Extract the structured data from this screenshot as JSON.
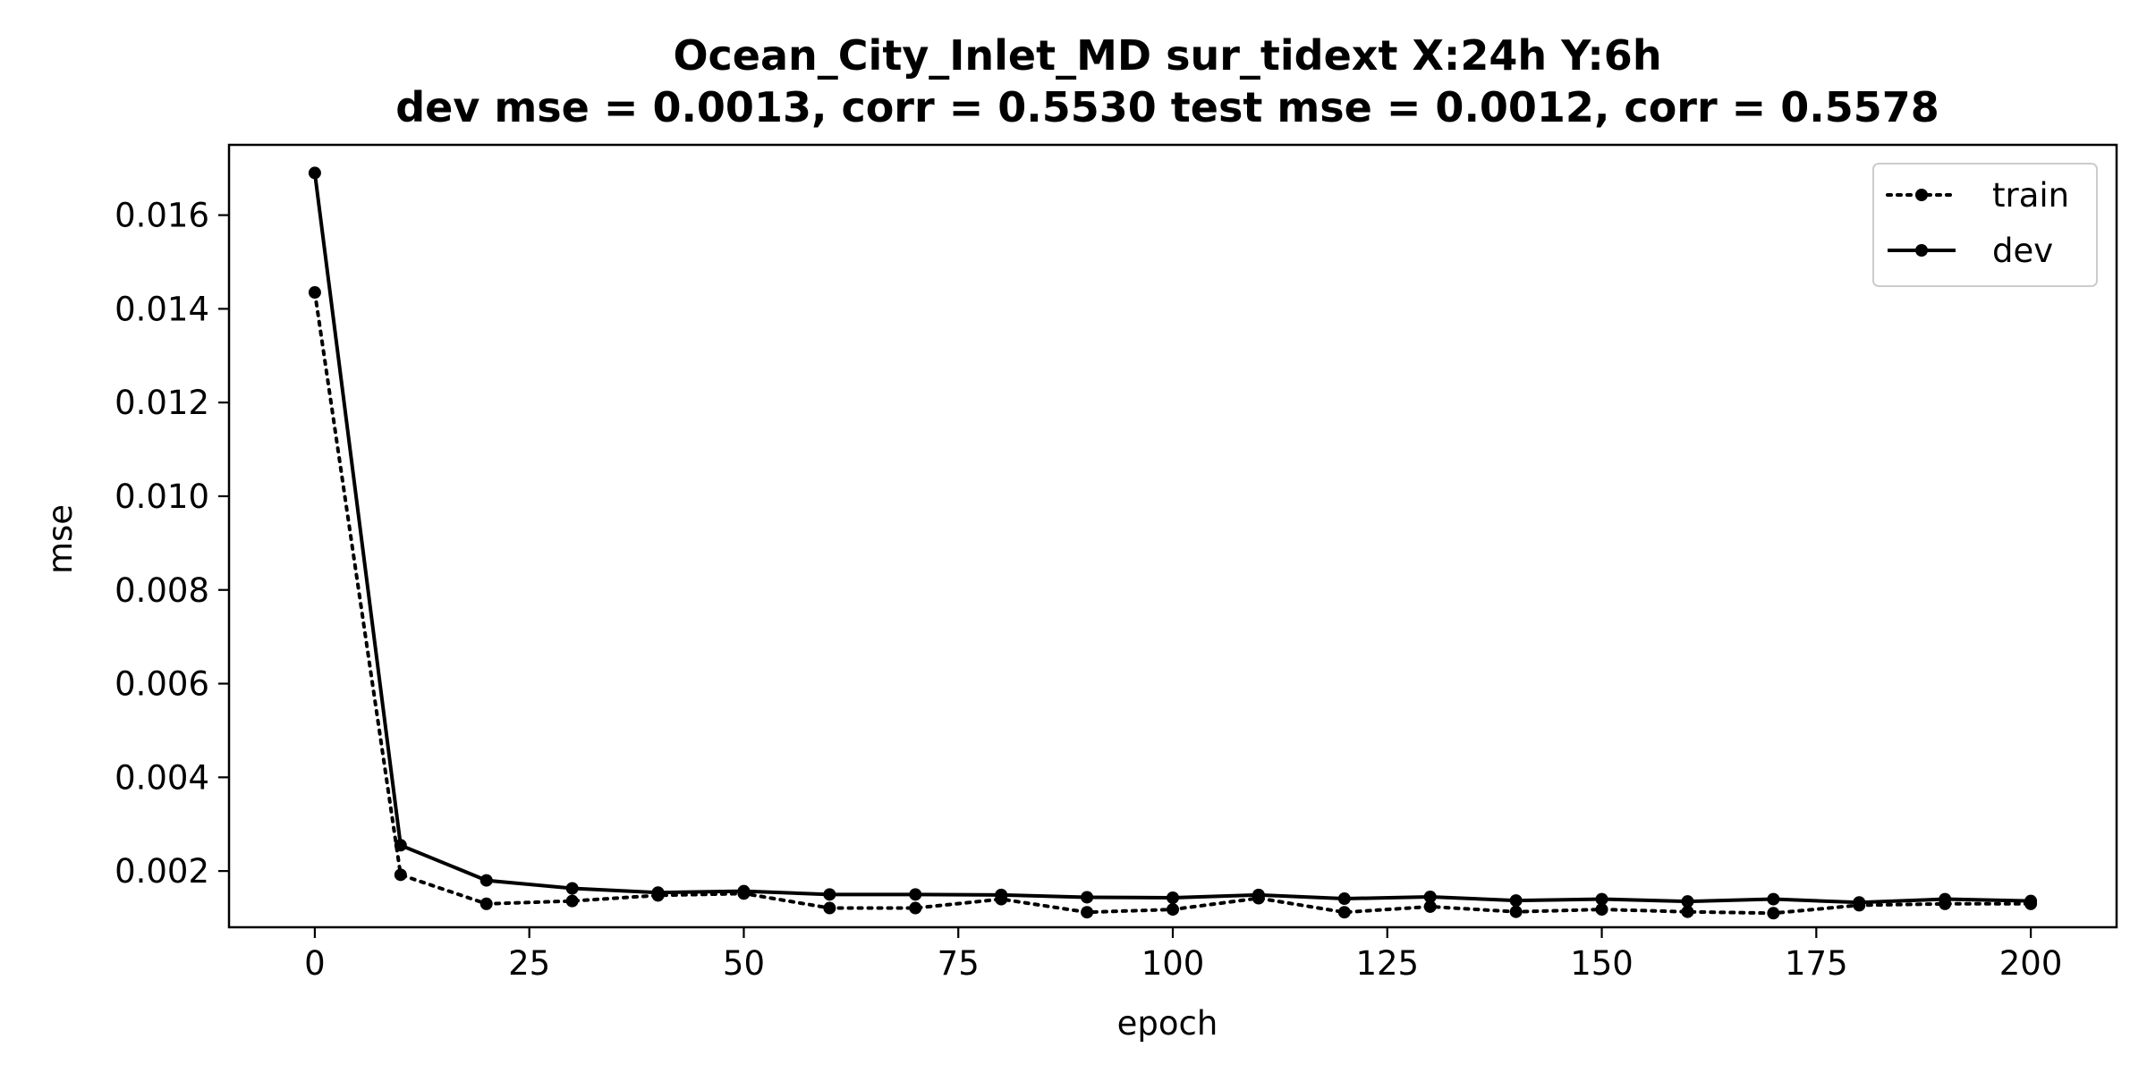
{
  "chart_data": {
    "type": "line",
    "title": "Ocean_City_Inlet_MD   sur_tidext   X:24h   Y:6h",
    "subtitle": "dev mse = 0.0013, corr = 0.5530   test mse = 0.0012, corr = 0.5578",
    "xlabel": "epoch",
    "ylabel": "mse",
    "xlim": [
      -10,
      210
    ],
    "ylim": [
      0.0008,
      0.0175
    ],
    "xticks": [
      0,
      25,
      50,
      75,
      100,
      125,
      150,
      175,
      200
    ],
    "xtick_labels": [
      "0",
      "25",
      "50",
      "75",
      "100",
      "125",
      "150",
      "175",
      "200"
    ],
    "yticks": [
      0.002,
      0.004,
      0.006,
      0.008,
      0.01,
      0.012,
      0.014,
      0.016
    ],
    "ytick_labels": [
      "0.002",
      "0.004",
      "0.006",
      "0.008",
      "0.010",
      "0.012",
      "0.014",
      "0.016"
    ],
    "grid": false,
    "legend_position": "top-right",
    "x": [
      0,
      10,
      20,
      30,
      40,
      50,
      60,
      70,
      80,
      90,
      100,
      110,
      120,
      130,
      140,
      150,
      160,
      170,
      180,
      190,
      200
    ],
    "series": [
      {
        "name": "train",
        "style": "dotted",
        "color": "#000000",
        "values": [
          0.01435,
          0.00192,
          0.0013,
          0.00136,
          0.00148,
          0.00152,
          0.00121,
          0.00121,
          0.0014,
          0.00112,
          0.00118,
          0.00142,
          0.00112,
          0.00124,
          0.00113,
          0.00118,
          0.00113,
          0.0011,
          0.00127,
          0.0013,
          0.0013
        ]
      },
      {
        "name": "dev",
        "style": "solid",
        "color": "#000000",
        "values": [
          0.0169,
          0.00255,
          0.0018,
          0.00163,
          0.00154,
          0.00157,
          0.0015,
          0.0015,
          0.00149,
          0.00144,
          0.00143,
          0.00149,
          0.00141,
          0.00145,
          0.00137,
          0.0014,
          0.00135,
          0.0014,
          0.00133,
          0.0014,
          0.00136
        ]
      }
    ]
  }
}
